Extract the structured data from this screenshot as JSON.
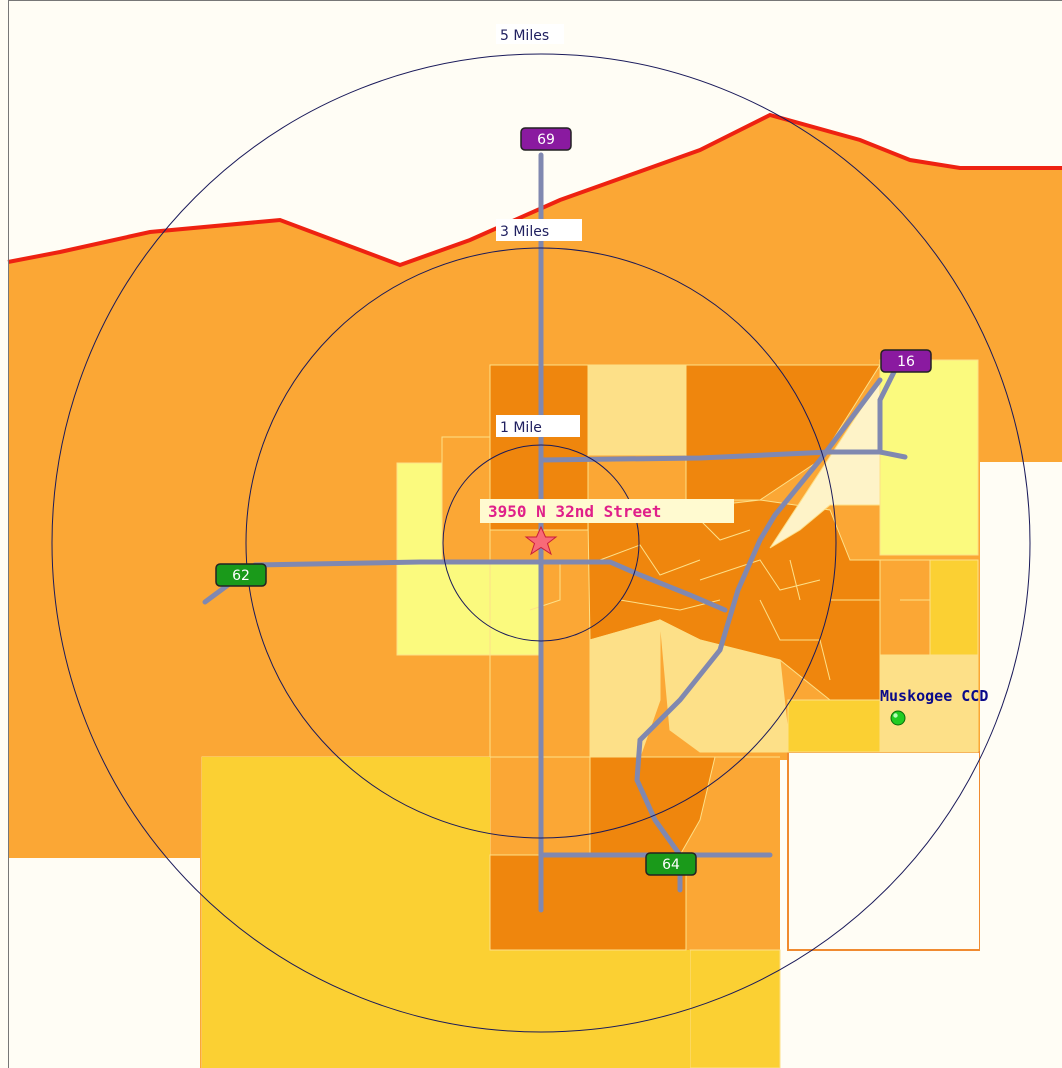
{
  "map": {
    "colors": {
      "background": "#fffdf5",
      "tract_low": "#fbfa7e",
      "tract_light": "#fde088",
      "tract_mid_yellow": "#fbd033",
      "tract_mid": "#fba735",
      "tract_high": "#ef860d",
      "tract_cream": "#fef3c8",
      "road": "#8088b0",
      "boundary_red": "#ee2211",
      "ring": "#1a1a5a",
      "us_shield": "#8a1aa0",
      "state_shield": "#1a9a1a"
    },
    "rings": [
      {
        "label": "5 Miles"
      },
      {
        "label": "3 Miles"
      },
      {
        "label": "1 Mile"
      }
    ],
    "shields": [
      {
        "number": "69",
        "type": "US",
        "icon": "us-highway-shield"
      },
      {
        "number": "16",
        "type": "US",
        "icon": "us-highway-shield"
      },
      {
        "number": "62",
        "type": "State",
        "icon": "state-highway-shield"
      },
      {
        "number": "64",
        "type": "State",
        "icon": "state-highway-shield"
      }
    ],
    "site": {
      "label": "3950 N 32nd Street",
      "icon": "star-marker-icon"
    },
    "place": {
      "label": "Muskogee CCD",
      "icon": "green-dot-icon"
    }
  }
}
